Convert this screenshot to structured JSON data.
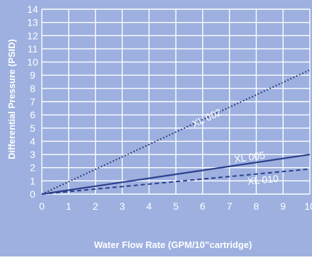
{
  "chart_data": {
    "type": "line",
    "title": "",
    "xlabel": "Water Flow Rate (GPM/10”cartridge)",
    "ylabel": "Differential Pressure (PSID)",
    "xlim": [
      0,
      10
    ],
    "ylim": [
      0,
      14
    ],
    "x_ticks": [
      "0",
      "1",
      "2",
      "3",
      "4",
      "5",
      "6",
      "7",
      "8",
      "9",
      "10"
    ],
    "y_ticks": [
      "0",
      "1",
      "2",
      "3",
      "4",
      "5",
      "6",
      "7",
      "8",
      "9",
      "10",
      "11",
      "12",
      "13",
      "14"
    ],
    "grid": true,
    "series": [
      {
        "name": "XL 002",
        "x": [
          0,
          10
        ],
        "y": [
          0,
          9.4
        ],
        "line_style": "dotted",
        "color": "#1f2f73"
      },
      {
        "name": "XL 005",
        "x": [
          0,
          10
        ],
        "y": [
          0,
          3.0
        ],
        "line_style": "solid",
        "color": "#2c3f8c"
      },
      {
        "name": "XL 010",
        "x": [
          0,
          10
        ],
        "y": [
          0,
          1.9
        ],
        "line_style": "dashed",
        "color": "#2c3f8c"
      }
    ]
  },
  "colors": {
    "plot_background": "#9db0df",
    "grid": "#ffffff",
    "axis_text": "#ffffff",
    "series_label": "#ffffff"
  }
}
